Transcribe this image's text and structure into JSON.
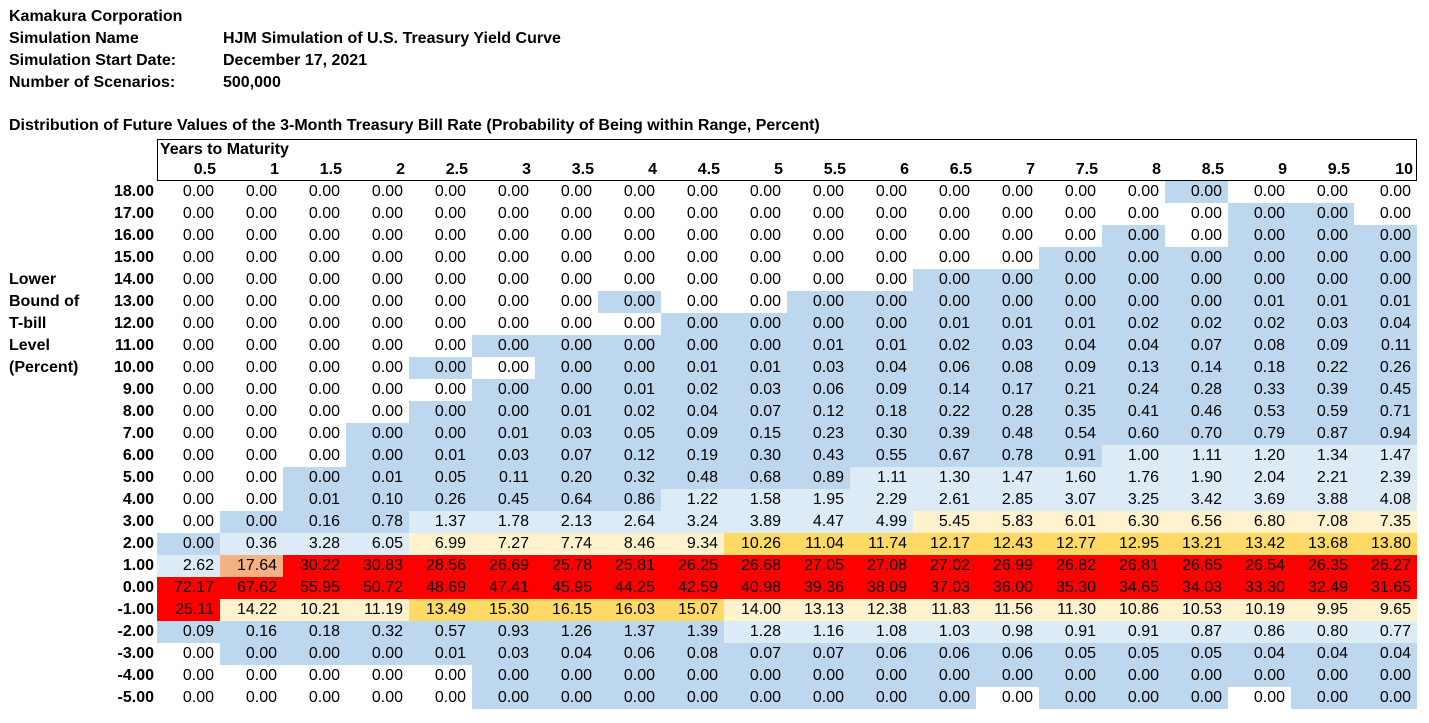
{
  "header": {
    "company": "Kamakura Corporation",
    "sim_name_label": "Simulation Name",
    "sim_name_value": "HJM Simulation of U.S. Treasury Yield Curve",
    "start_label": "Simulation Start Date:",
    "start_value": "December 17, 2021",
    "scen_label": "Number of Scenarios:",
    "scen_value": "500,000"
  },
  "table_title": "Distribution of Future Values of the 3-Month Treasury Bill Rate (Probability of Being within Range, Percent)",
  "side_label": [
    "Lower",
    "Bound of",
    "T-bill",
    "Level",
    "(Percent)"
  ],
  "colors": {
    "blue": "#bdd7ee",
    "light_blue": "#ddebf7",
    "light_yellow": "#fff2cc",
    "yellow": "#ffd966",
    "orange": "#f4b183",
    "red": "#ff0000",
    "white": "#ffffff"
  },
  "chart_data": {
    "type": "heatmap",
    "title": "Distribution of Future Values of the 3-Month Treasury Bill Rate (Probability of Being within Range, Percent)",
    "xlabel": "Years to Maturity",
    "ylabel": "Lower Bound of T-bill Level (Percent)",
    "columns": [
      "0.5",
      "1",
      "1.5",
      "2",
      "2.5",
      "3",
      "3.5",
      "4",
      "4.5",
      "5",
      "5.5",
      "6",
      "6.5",
      "7",
      "7.5",
      "8",
      "8.5",
      "9",
      "9.5",
      "10"
    ],
    "rows": [
      "18.00",
      "17.00",
      "16.00",
      "15.00",
      "14.00",
      "13.00",
      "12.00",
      "11.00",
      "10.00",
      "9.00",
      "8.00",
      "7.00",
      "6.00",
      "5.00",
      "4.00",
      "3.00",
      "2.00",
      "1.00",
      "0.00",
      "-1.00",
      "-2.00",
      "-3.00",
      "-4.00",
      "-5.00"
    ],
    "values": [
      [
        "0.00",
        "0.00",
        "0.00",
        "0.00",
        "0.00",
        "0.00",
        "0.00",
        "0.00",
        "0.00",
        "0.00",
        "0.00",
        "0.00",
        "0.00",
        "0.00",
        "0.00",
        "0.00",
        "0.00",
        "0.00",
        "0.00",
        "0.00"
      ],
      [
        "0.00",
        "0.00",
        "0.00",
        "0.00",
        "0.00",
        "0.00",
        "0.00",
        "0.00",
        "0.00",
        "0.00",
        "0.00",
        "0.00",
        "0.00",
        "0.00",
        "0.00",
        "0.00",
        "0.00",
        "0.00",
        "0.00",
        "0.00"
      ],
      [
        "0.00",
        "0.00",
        "0.00",
        "0.00",
        "0.00",
        "0.00",
        "0.00",
        "0.00",
        "0.00",
        "0.00",
        "0.00",
        "0.00",
        "0.00",
        "0.00",
        "0.00",
        "0.00",
        "0.00",
        "0.00",
        "0.00",
        "0.00"
      ],
      [
        "0.00",
        "0.00",
        "0.00",
        "0.00",
        "0.00",
        "0.00",
        "0.00",
        "0.00",
        "0.00",
        "0.00",
        "0.00",
        "0.00",
        "0.00",
        "0.00",
        "0.00",
        "0.00",
        "0.00",
        "0.00",
        "0.00",
        "0.00"
      ],
      [
        "0.00",
        "0.00",
        "0.00",
        "0.00",
        "0.00",
        "0.00",
        "0.00",
        "0.00",
        "0.00",
        "0.00",
        "0.00",
        "0.00",
        "0.00",
        "0.00",
        "0.00",
        "0.00",
        "0.00",
        "0.00",
        "0.00",
        "0.00"
      ],
      [
        "0.00",
        "0.00",
        "0.00",
        "0.00",
        "0.00",
        "0.00",
        "0.00",
        "0.00",
        "0.00",
        "0.00",
        "0.00",
        "0.00",
        "0.00",
        "0.00",
        "0.00",
        "0.00",
        "0.00",
        "0.01",
        "0.01",
        "0.01"
      ],
      [
        "0.00",
        "0.00",
        "0.00",
        "0.00",
        "0.00",
        "0.00",
        "0.00",
        "0.00",
        "0.00",
        "0.00",
        "0.00",
        "0.00",
        "0.01",
        "0.01",
        "0.01",
        "0.02",
        "0.02",
        "0.02",
        "0.03",
        "0.04"
      ],
      [
        "0.00",
        "0.00",
        "0.00",
        "0.00",
        "0.00",
        "0.00",
        "0.00",
        "0.00",
        "0.00",
        "0.00",
        "0.01",
        "0.01",
        "0.02",
        "0.03",
        "0.04",
        "0.04",
        "0.07",
        "0.08",
        "0.09",
        "0.11"
      ],
      [
        "0.00",
        "0.00",
        "0.00",
        "0.00",
        "0.00",
        "0.00",
        "0.00",
        "0.00",
        "0.01",
        "0.01",
        "0.03",
        "0.04",
        "0.06",
        "0.08",
        "0.09",
        "0.13",
        "0.14",
        "0.18",
        "0.22",
        "0.26"
      ],
      [
        "0.00",
        "0.00",
        "0.00",
        "0.00",
        "0.00",
        "0.00",
        "0.00",
        "0.01",
        "0.02",
        "0.03",
        "0.06",
        "0.09",
        "0.14",
        "0.17",
        "0.21",
        "0.24",
        "0.28",
        "0.33",
        "0.39",
        "0.45"
      ],
      [
        "0.00",
        "0.00",
        "0.00",
        "0.00",
        "0.00",
        "0.00",
        "0.01",
        "0.02",
        "0.04",
        "0.07",
        "0.12",
        "0.18",
        "0.22",
        "0.28",
        "0.35",
        "0.41",
        "0.46",
        "0.53",
        "0.59",
        "0.71"
      ],
      [
        "0.00",
        "0.00",
        "0.00",
        "0.00",
        "0.00",
        "0.01",
        "0.03",
        "0.05",
        "0.09",
        "0.15",
        "0.23",
        "0.30",
        "0.39",
        "0.48",
        "0.54",
        "0.60",
        "0.70",
        "0.79",
        "0.87",
        "0.94"
      ],
      [
        "0.00",
        "0.00",
        "0.00",
        "0.00",
        "0.01",
        "0.03",
        "0.07",
        "0.12",
        "0.19",
        "0.30",
        "0.43",
        "0.55",
        "0.67",
        "0.78",
        "0.91",
        "1.00",
        "1.11",
        "1.20",
        "1.34",
        "1.47"
      ],
      [
        "0.00",
        "0.00",
        "0.00",
        "0.01",
        "0.05",
        "0.11",
        "0.20",
        "0.32",
        "0.48",
        "0.68",
        "0.89",
        "1.11",
        "1.30",
        "1.47",
        "1.60",
        "1.76",
        "1.90",
        "2.04",
        "2.21",
        "2.39"
      ],
      [
        "0.00",
        "0.00",
        "0.01",
        "0.10",
        "0.26",
        "0.45",
        "0.64",
        "0.86",
        "1.22",
        "1.58",
        "1.95",
        "2.29",
        "2.61",
        "2.85",
        "3.07",
        "3.25",
        "3.42",
        "3.69",
        "3.88",
        "4.08"
      ],
      [
        "0.00",
        "0.00",
        "0.16",
        "0.78",
        "1.37",
        "1.78",
        "2.13",
        "2.64",
        "3.24",
        "3.89",
        "4.47",
        "4.99",
        "5.45",
        "5.83",
        "6.01",
        "6.30",
        "6.56",
        "6.80",
        "7.08",
        "7.35"
      ],
      [
        "0.00",
        "0.36",
        "3.28",
        "6.05",
        "6.99",
        "7.27",
        "7.74",
        "8.46",
        "9.34",
        "10.26",
        "11.04",
        "11.74",
        "12.17",
        "12.43",
        "12.77",
        "12.95",
        "13.21",
        "13.42",
        "13.68",
        "13.80"
      ],
      [
        "2.62",
        "17.64",
        "30.22",
        "30.83",
        "28.56",
        "26.69",
        "25.78",
        "25.81",
        "26.25",
        "26.68",
        "27.05",
        "27.08",
        "27.02",
        "26.99",
        "26.82",
        "26.81",
        "26.65",
        "26.54",
        "26.35",
        "26.27"
      ],
      [
        "72.17",
        "67.62",
        "55.95",
        "50.72",
        "48.69",
        "47.41",
        "45.95",
        "44.25",
        "42.59",
        "40.98",
        "39.36",
        "38.09",
        "37.03",
        "36.00",
        "35.30",
        "34.65",
        "34.03",
        "33.30",
        "32.49",
        "31.65"
      ],
      [
        "25.11",
        "14.22",
        "10.21",
        "11.19",
        "13.49",
        "15.30",
        "16.15",
        "16.03",
        "15.07",
        "14.00",
        "13.13",
        "12.38",
        "11.83",
        "11.56",
        "11.30",
        "10.86",
        "10.53",
        "10.19",
        "9.95",
        "9.65"
      ],
      [
        "0.09",
        "0.16",
        "0.18",
        "0.32",
        "0.57",
        "0.93",
        "1.26",
        "1.37",
        "1.39",
        "1.28",
        "1.16",
        "1.08",
        "1.03",
        "0.98",
        "0.91",
        "0.91",
        "0.87",
        "0.86",
        "0.80",
        "0.77"
      ],
      [
        "0.00",
        "0.00",
        "0.00",
        "0.00",
        "0.01",
        "0.03",
        "0.04",
        "0.06",
        "0.08",
        "0.07",
        "0.07",
        "0.06",
        "0.06",
        "0.06",
        "0.05",
        "0.05",
        "0.05",
        "0.04",
        "0.04",
        "0.04"
      ],
      [
        "0.00",
        "0.00",
        "0.00",
        "0.00",
        "0.00",
        "0.00",
        "0.00",
        "0.00",
        "0.00",
        "0.00",
        "0.00",
        "0.00",
        "0.00",
        "0.00",
        "0.00",
        "0.00",
        "0.00",
        "0.00",
        "0.00",
        "0.00"
      ],
      [
        "0.00",
        "0.00",
        "0.00",
        "0.00",
        "0.00",
        "0.00",
        "0.00",
        "0.00",
        "0.00",
        "0.00",
        "0.00",
        "0.00",
        "0.00",
        "0.00",
        "0.00",
        "0.00",
        "0.00",
        "0.00",
        "0.00",
        "0.00"
      ]
    ],
    "fills": [
      "WWWWWWWWWWWWWWWWBWWW",
      "WWWWWWWWWWWWWWWWWBBW",
      "WWWWWWWWWWWWWWWBWBBB",
      "WWWWWWWWWWWWWWBBBBBB",
      "WWWWWWWWWWWWBBBBBBBB",
      "WWWWWWWBWWBBBBBBBBBB",
      "WWWWWWWWBBBBBBBBBBBB",
      "WWWWWBBBBBBBBBBBBBBB",
      "WWWWBWBBBBBBBBBBBBBB",
      "WWWWWBBBBBBBBBBBBBBB",
      "WWWWBBBBBBBBBBBBBBBB",
      "WWWBBBBBBBBBBBBBBBBB",
      "WWWBBBBBBBBBBBBLLLLL",
      "WWBBBBBBBBBLLLLLLLLL",
      "WWBBBBBBLLLLLLLLLLLL",
      "WBBBLLLLLLLLYYYYYYYY",
      "BLLLYYYYYGGGGGGGGGGG",
      "LORRRRRRRRRRRRRRRRRR",
      "RRRRRRRRRRRRRRRRRRRR",
      "RYYYGGGGGYYYYYYYYYYY",
      "BBBBBBBBBLLLLLLLLLLL",
      "WBBBBBBBBBBBBBBBBBBB",
      "WWWWWBBBBBBBBBBBBBBB",
      "WWWWWBBBBBBBBWBBBWBB"
    ],
    "fill_legend": {
      "W": "white",
      "B": "blue",
      "L": "light_blue",
      "Y": "light_yellow",
      "G": "yellow",
      "O": "orange",
      "R": "red"
    }
  }
}
